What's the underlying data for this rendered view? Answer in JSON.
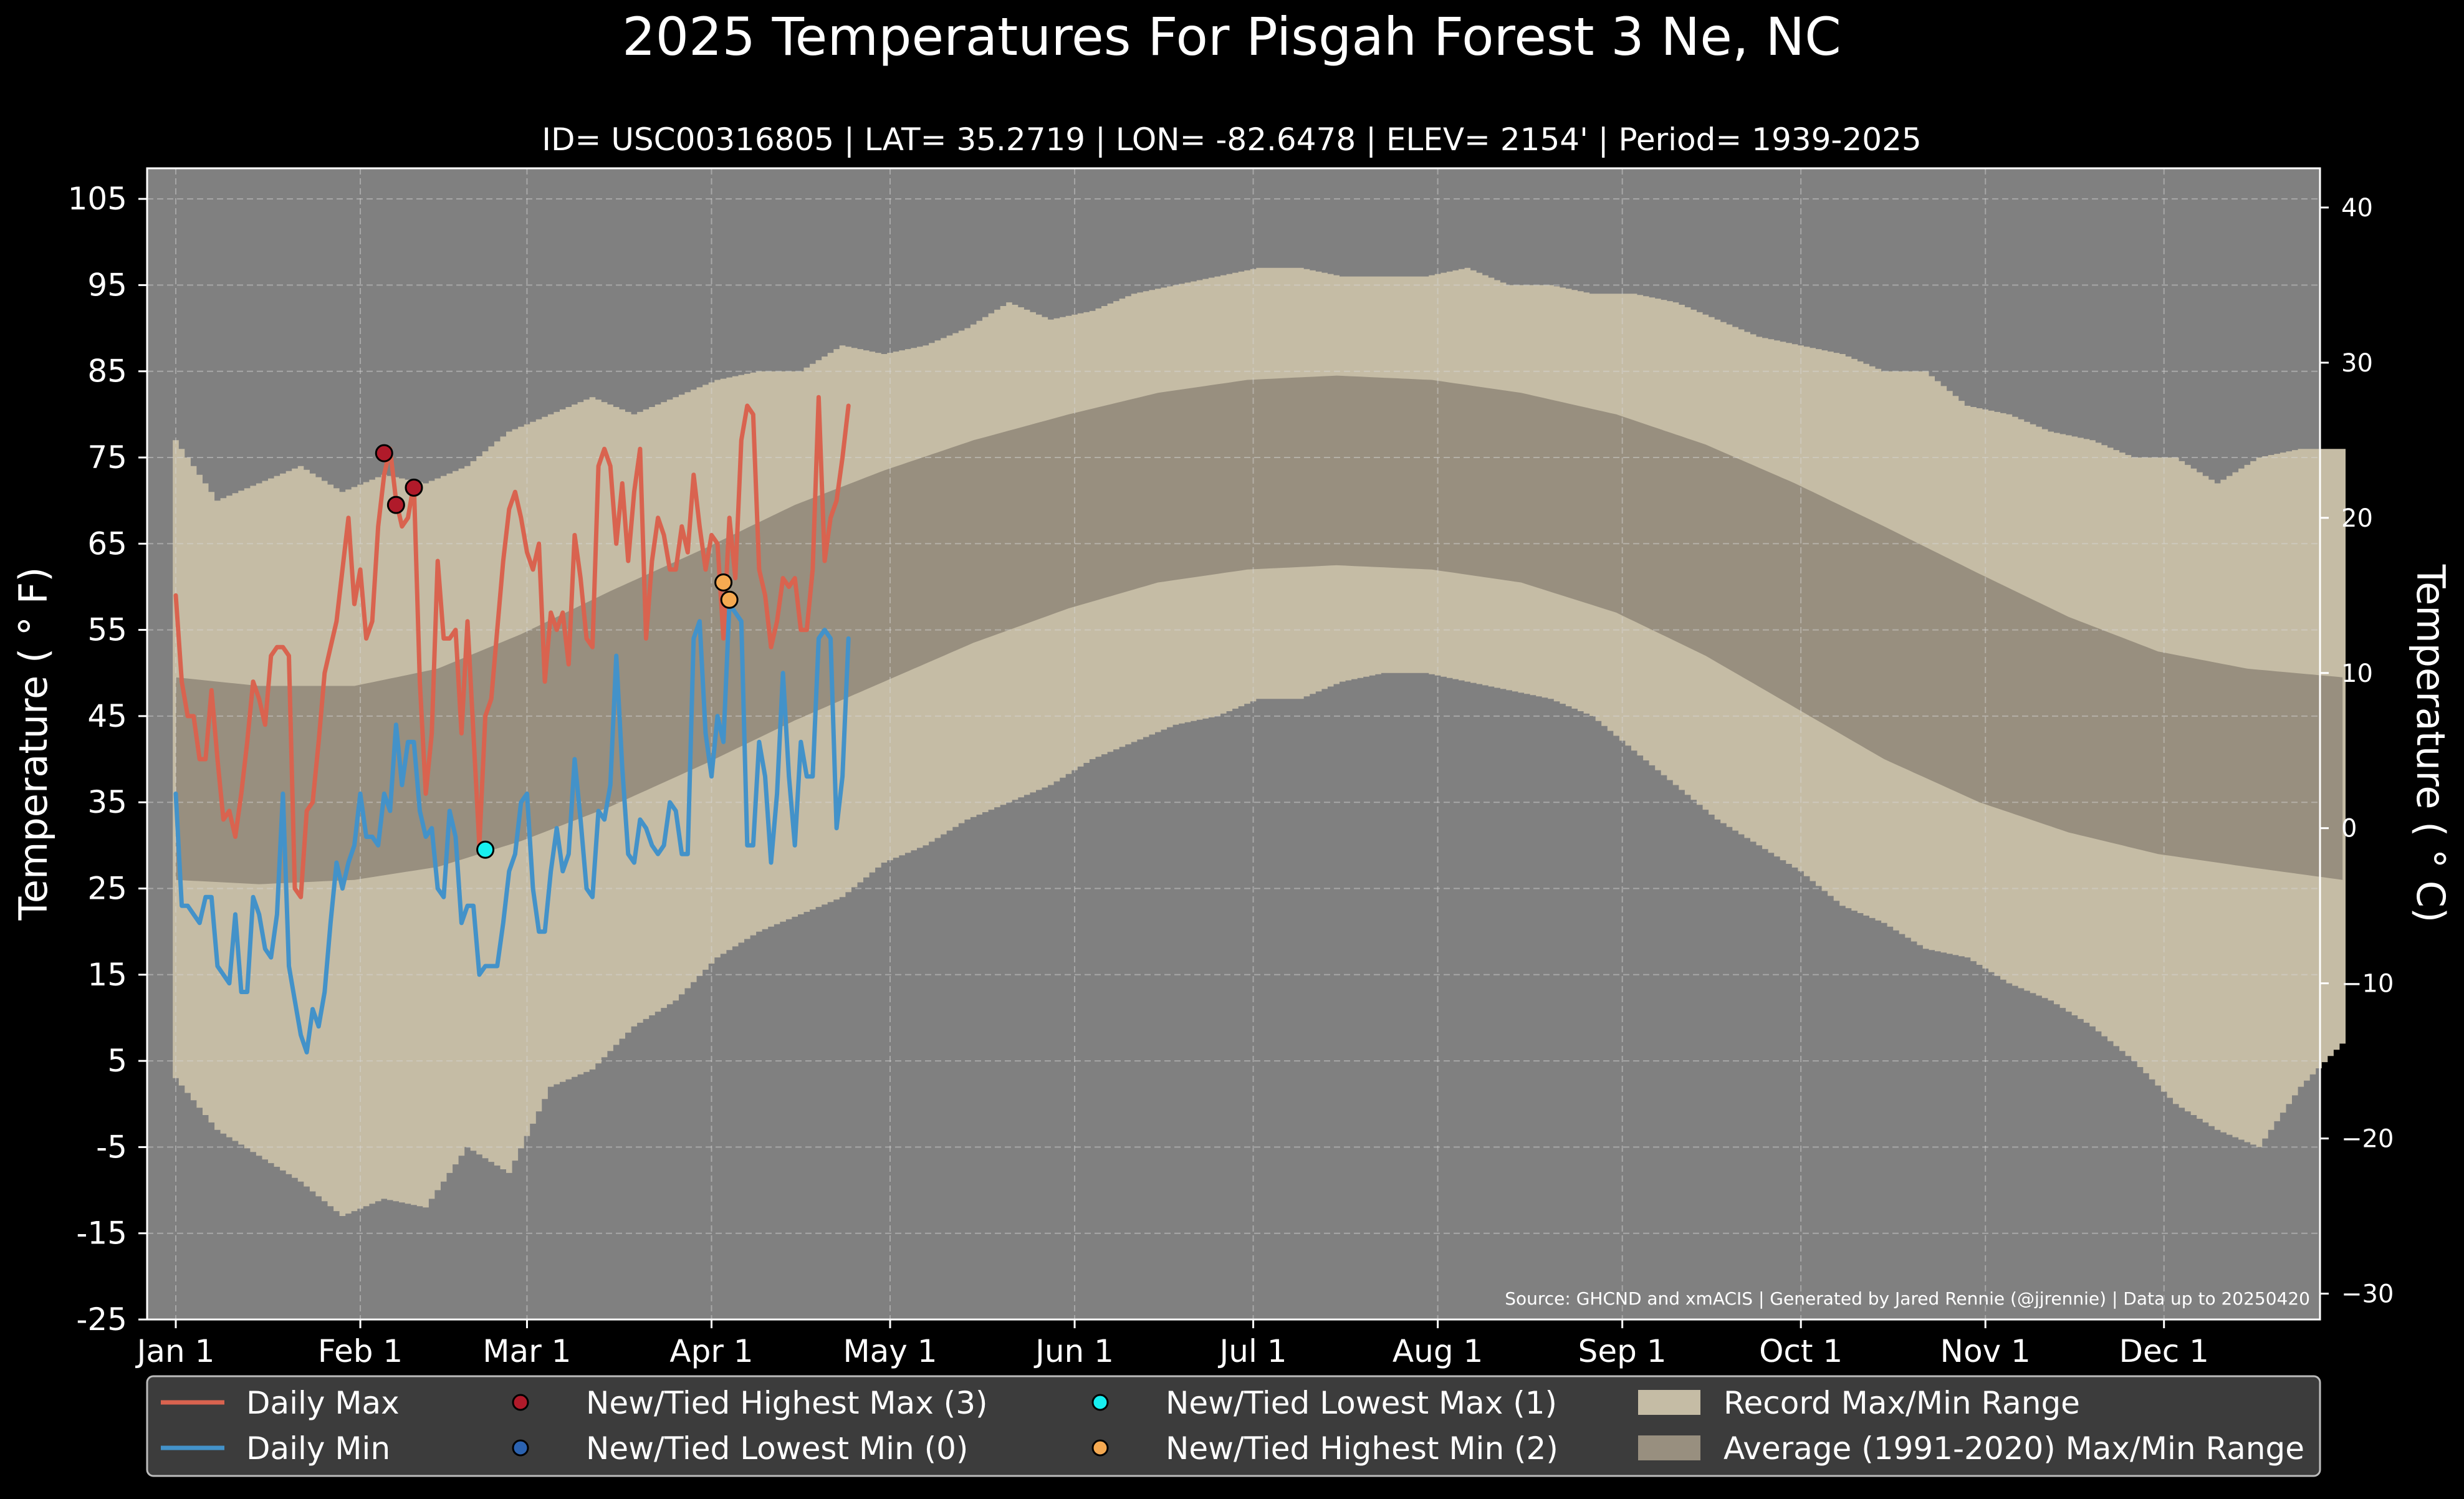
{
  "colors": {
    "background": "#000000",
    "plot_background": "#808080",
    "record_range": "#c5bca5",
    "average_range": "#988f7f",
    "daily_max": "#d9634f",
    "daily_min": "#4392c9",
    "highest_max_marker": "#b01a2a",
    "lowest_min_marker": "#2b62b0",
    "lowest_max_marker": "#17eff0",
    "highest_min_marker": "#f5a951",
    "legend_background": "#3c3c3c",
    "text": "#ffffff"
  },
  "chart_data": {
    "type": "line",
    "title": "2025 Temperatures For Pisgah Forest 3 Ne, NC",
    "subtitle": "ID= USC00316805 | LAT= 35.2719 | LON= -82.6478 | ELEV= 2154' | Period= 1939-2025",
    "ylabel": "Temperature ($^\\circ$F)",
    "ylabel_display": "Temperature ( ° F)",
    "y2label_display": "Temperature ( ° C)",
    "source": "Source: GHCND and xmACIS | Generated by Jared Rennie (@jjrennie) | Data up to 20250420",
    "ylim": [
      -25,
      110
    ],
    "y_ticks": [
      105,
      95,
      85,
      75,
      65,
      55,
      45,
      35,
      25,
      15,
      5,
      -5,
      -15,
      -25
    ],
    "y2_ticks": [
      40,
      30,
      20,
      10,
      0,
      -10,
      -20,
      -30
    ],
    "y2_tick_labels": [
      "40",
      "30",
      "20",
      "10",
      "0",
      "−10",
      "−20",
      "−30"
    ],
    "x_ticks": [
      {
        "day": 1,
        "label": "Jan 1"
      },
      {
        "day": 32,
        "label": "Feb 1"
      },
      {
        "day": 60,
        "label": "Mar 1"
      },
      {
        "day": 91,
        "label": "Apr 1"
      },
      {
        "day": 121,
        "label": "May 1"
      },
      {
        "day": 152,
        "label": "Jun 1"
      },
      {
        "day": 182,
        "label": "Jul 1"
      },
      {
        "day": 213,
        "label": "Aug 1"
      },
      {
        "day": 244,
        "label": "Sep 1"
      },
      {
        "day": 274,
        "label": "Oct 1"
      },
      {
        "day": 305,
        "label": "Nov 1"
      },
      {
        "day": 335,
        "label": "Dec 1"
      }
    ],
    "grid": true,
    "legend_position": "bottom",
    "record_range": {
      "days": [
        1,
        8,
        15,
        22,
        29,
        36,
        43,
        50,
        57,
        64,
        71,
        78,
        85,
        92,
        99,
        106,
        113,
        120,
        127,
        134,
        141,
        148,
        155,
        162,
        169,
        176,
        183,
        190,
        197,
        204,
        211,
        218,
        225,
        232,
        239,
        246,
        253,
        260,
        267,
        274,
        281,
        288,
        295,
        302,
        309,
        316,
        323,
        330,
        337,
        344,
        351,
        358,
        365
      ],
      "max": [
        77,
        70,
        72,
        74,
        71,
        73,
        72,
        74,
        78,
        80,
        82,
        80,
        82,
        84,
        85,
        85,
        88,
        87,
        88,
        90,
        93,
        91,
        92,
        94,
        95,
        96,
        97,
        97,
        96,
        96,
        96,
        97,
        95,
        95,
        94,
        94,
        93,
        91,
        89,
        88,
        87,
        85,
        85,
        81,
        80,
        78,
        77,
        75,
        75,
        72,
        75,
        76,
        76
      ],
      "min": [
        3,
        -3,
        -6,
        -9,
        -13,
        -11,
        -12,
        -5,
        -8,
        2,
        4,
        9,
        12,
        17,
        20,
        22,
        24,
        28,
        30,
        33,
        35,
        37,
        40,
        42,
        44,
        45,
        47,
        47,
        49,
        50,
        50,
        49,
        48,
        47,
        45,
        41,
        37,
        33,
        30,
        27,
        23,
        21,
        18,
        17,
        14,
        12,
        9,
        5,
        0,
        -3,
        -5,
        2,
        7
      ]
    },
    "average_range": {
      "days": [
        1,
        15,
        31,
        45,
        59,
        74,
        90,
        105,
        120,
        135,
        151,
        166,
        181,
        196,
        212,
        227,
        243,
        258,
        273,
        288,
        304,
        319,
        334,
        349,
        365
      ],
      "max": [
        49.5,
        48.5,
        48.5,
        50.5,
        54.5,
        59.5,
        64.5,
        69.5,
        73.5,
        77,
        80,
        82.5,
        84,
        84.5,
        84,
        82.5,
        80,
        76.5,
        72,
        67,
        61.5,
        56.5,
        52.5,
        50.5,
        49.5
      ],
      "min": [
        26,
        25.5,
        26,
        27.5,
        30.5,
        34.5,
        39.5,
        44.5,
        49,
        53.5,
        57.5,
        60.5,
        62,
        62.5,
        62,
        60.5,
        57,
        52,
        46,
        40,
        35,
        31.5,
        29,
        27.5,
        26
      ]
    },
    "series": [
      {
        "name": "Daily Max",
        "days": [
          1,
          2,
          3,
          4,
          5,
          6,
          7,
          8,
          9,
          10,
          11,
          12,
          13,
          14,
          15,
          16,
          17,
          18,
          19,
          20,
          21,
          22,
          23,
          24,
          25,
          26,
          27,
          28,
          29,
          30,
          31,
          32,
          33,
          34,
          35,
          36,
          37,
          38,
          39,
          40,
          41,
          42,
          43,
          44,
          45,
          46,
          47,
          48,
          49,
          50,
          51,
          52,
          53,
          54,
          55,
          56,
          57,
          58,
          59,
          60,
          61,
          62,
          63,
          64,
          65,
          66,
          67,
          68,
          69,
          70,
          71,
          72,
          73,
          74,
          75,
          76,
          77,
          78,
          79,
          80,
          81,
          82,
          83,
          84,
          85,
          86,
          87,
          88,
          89,
          90,
          91,
          92,
          93,
          94,
          95,
          96,
          97,
          98,
          99,
          100,
          101,
          102,
          103,
          104,
          105,
          106,
          107,
          108,
          109,
          110
        ],
        "values": [
          59,
          49,
          45,
          45,
          40,
          40,
          48,
          40,
          33,
          34,
          31,
          36,
          42,
          49,
          47,
          44,
          52,
          53,
          53,
          52,
          25,
          24,
          34,
          35,
          42,
          50,
          53,
          56,
          62,
          68,
          58,
          62,
          54,
          56,
          67,
          73,
          76,
          70,
          67,
          68,
          72,
          49,
          36,
          43,
          63,
          54,
          54,
          55,
          43,
          56,
          43,
          30,
          45,
          47,
          55,
          63,
          69,
          71,
          68,
          64,
          62,
          65,
          49,
          57,
          55,
          57,
          51,
          66,
          61,
          54,
          53,
          74,
          76,
          74,
          65,
          72,
          63,
          71,
          76,
          54,
          63,
          68,
          66,
          62,
          62,
          67,
          64,
          73,
          67,
          62,
          66,
          65,
          54,
          68,
          61,
          77,
          81,
          80,
          62,
          59,
          53,
          56,
          61,
          60,
          61,
          55,
          55,
          62,
          82,
          63
        ],
        "extra_days": [
          111,
          112,
          113,
          114
        ],
        "extra_values": [
          68,
          70,
          75,
          81
        ]
      },
      {
        "name": "Daily Min",
        "days": [
          1,
          2,
          3,
          4,
          5,
          6,
          7,
          8,
          9,
          10,
          11,
          12,
          13,
          14,
          15,
          16,
          17,
          18,
          19,
          20,
          21,
          22,
          23,
          24,
          25,
          26,
          27,
          28,
          29,
          30,
          31,
          32,
          33,
          34,
          35,
          36,
          37,
          38,
          39,
          40,
          41,
          42,
          43,
          44,
          45,
          46,
          47,
          48,
          49,
          50,
          51,
          52,
          53,
          54,
          55,
          56,
          57,
          58,
          59,
          60,
          61,
          62,
          63,
          64,
          65,
          66,
          67,
          68,
          69,
          70,
          71,
          72,
          73,
          74,
          75,
          76,
          77,
          78,
          79,
          80,
          81,
          82,
          83,
          84,
          85,
          86,
          87,
          88,
          89,
          90,
          91,
          92,
          93,
          94,
          95,
          96,
          97,
          98,
          99,
          100,
          101,
          102,
          103,
          104,
          105,
          106,
          107,
          108,
          109,
          110,
          111,
          112,
          113,
          114
        ],
        "values": [
          36,
          23,
          23,
          22,
          21,
          24,
          24,
          16,
          15,
          14,
          22,
          13,
          13,
          24,
          22,
          18,
          17,
          22,
          36,
          16,
          12,
          8,
          6,
          11,
          9,
          13,
          21,
          28,
          25,
          28,
          30,
          36,
          31,
          31,
          30,
          36,
          34,
          44,
          37,
          42,
          42,
          34,
          31,
          32,
          25,
          24,
          34,
          31,
          21,
          23,
          23,
          15,
          16,
          16,
          16,
          21,
          27,
          29,
          35,
          36,
          25,
          20,
          20,
          27,
          32,
          27,
          29,
          40,
          33,
          25,
          24,
          34,
          33,
          37,
          52,
          39,
          29,
          28,
          33,
          32,
          30,
          29,
          30,
          35,
          34,
          29,
          29,
          54,
          56,
          43,
          38,
          45,
          42,
          58,
          57,
          56,
          30,
          30,
          42,
          38,
          28,
          36,
          50,
          38,
          30,
          42,
          38,
          38,
          54,
          55,
          54,
          32,
          38,
          54
        ],
        "extra_days": [],
        "extra_values": []
      }
    ],
    "record_markers": [
      {
        "type": "highest_max",
        "day": 36,
        "value": 75.5
      },
      {
        "type": "highest_max",
        "day": 38,
        "value": 69.5
      },
      {
        "type": "highest_max",
        "day": 41,
        "value": 71.5
      },
      {
        "type": "lowest_max",
        "day": 53,
        "value": 29.5
      },
      {
        "type": "highest_min",
        "day": 93,
        "value": 60.5
      },
      {
        "type": "highest_min",
        "day": 94,
        "value": 58.5
      }
    ]
  },
  "legend": {
    "items": [
      {
        "label": "Daily Max",
        "kind": "line",
        "color_key": "daily_max"
      },
      {
        "label": "Daily Min",
        "kind": "line",
        "color_key": "daily_min"
      },
      {
        "label": "New/Tied Highest Max (3)",
        "kind": "dot",
        "color_key": "highest_max_marker"
      },
      {
        "label": "New/Tied Lowest Min (0)",
        "kind": "dot",
        "color_key": "lowest_min_marker"
      },
      {
        "label": "New/Tied Lowest Max (1)",
        "kind": "dot",
        "color_key": "lowest_max_marker"
      },
      {
        "label": "New/Tied Highest Min (2)",
        "kind": "dot",
        "color_key": "highest_min_marker"
      },
      {
        "label": "Record Max/Min Range",
        "kind": "patch",
        "color_key": "record_range"
      },
      {
        "label": "Average (1991-2020) Max/Min Range",
        "kind": "patch",
        "color_key": "average_range"
      }
    ]
  }
}
